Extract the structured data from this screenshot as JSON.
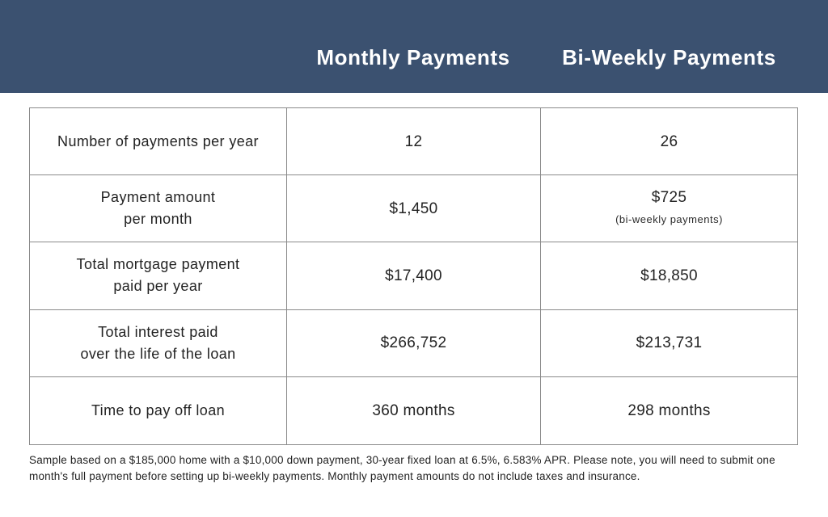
{
  "colors": {
    "band_bg": "#3b5170",
    "band_text": "#ffffff",
    "table_border": "#8a8a8a",
    "text": "#232323"
  },
  "header": {
    "monthly_label": "Monthly Payments",
    "biweekly_label": "Bi-Weekly Payments"
  },
  "table": {
    "rows": [
      {
        "label": "Number of payments per year",
        "monthly": "12",
        "biweekly": "26"
      },
      {
        "label": "Payment amount\nper month",
        "monthly": "$1,450",
        "biweekly": "$725",
        "biweekly_note": "(bi-weekly payments)"
      },
      {
        "label": "Total mortgage payment\npaid per year",
        "monthly": "$17,400",
        "biweekly": "$18,850"
      },
      {
        "label": "Total interest paid\nover the life of the loan",
        "monthly": "$266,752",
        "biweekly": "$213,731"
      },
      {
        "label": "Time to pay off loan",
        "monthly": "360 months",
        "biweekly": "298 months"
      }
    ]
  },
  "footnote": "Sample based on a $185,000 home with a $10,000 down payment, 30-year fixed loan at 6.5%, 6.583% APR. Please note, you will need to submit one month's full payment before setting up bi-weekly payments. Monthly payment amounts do not include taxes and insurance.",
  "chart_data": {
    "type": "table",
    "columns": [
      "",
      "Monthly Payments",
      "Bi-Weekly Payments"
    ],
    "rows": [
      [
        "Number of payments per year",
        "12",
        "26"
      ],
      [
        "Payment amount per month",
        "$1,450",
        "$725 (bi-weekly payments)"
      ],
      [
        "Total mortgage payment paid per year",
        "$17,400",
        "$18,850"
      ],
      [
        "Total interest paid over the life of the loan",
        "$266,752",
        "$213,731"
      ],
      [
        "Time to pay off loan",
        "360 months",
        "298 months"
      ]
    ],
    "footnote": "Sample based on a $185,000 home with a $10,000 down payment, 30-year fixed loan at 6.5%, 6.583% APR. Please note, you will need to submit one month's full payment before setting up bi-weekly payments. Monthly payment amounts do not include taxes and insurance."
  }
}
